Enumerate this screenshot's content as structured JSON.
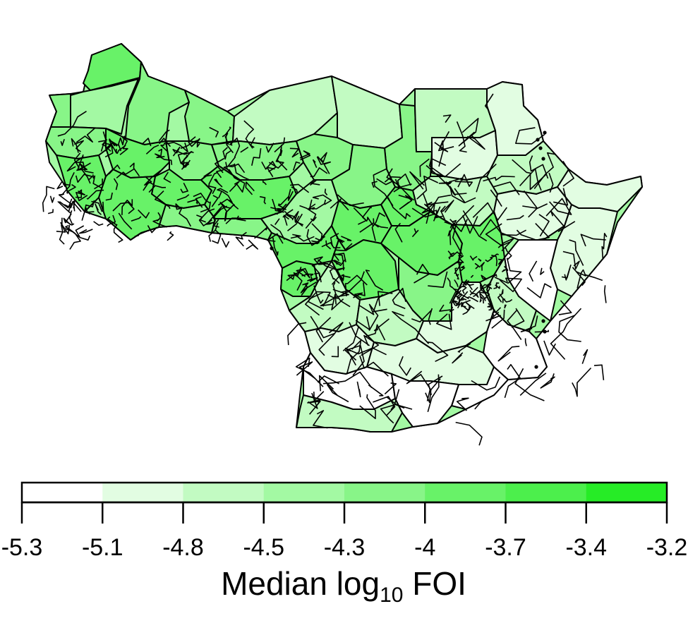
{
  "legend": {
    "title_main": "Median log",
    "title_sub": "10",
    "title_tail": " FOI",
    "ticks": [
      "-5.3",
      "-5.1",
      "-4.8",
      "-4.5",
      "-4.3",
      "-4",
      "-3.7",
      "-3.4",
      "-3.2"
    ],
    "colors": [
      "#ffffff",
      "#e2fde2",
      "#c2fbc2",
      "#a3f9a3",
      "#88f588",
      "#68f268",
      "#4cef4c",
      "#26ec26"
    ]
  },
  "map": {
    "palette": {
      "white": "#ffffff",
      "very_light": "#e2fde2",
      "light": "#c2fbc2",
      "light_mid": "#a3f9a3",
      "mid": "#88f588",
      "mid_dark": "#68f268",
      "dark": "#4cef4c"
    }
  }
}
